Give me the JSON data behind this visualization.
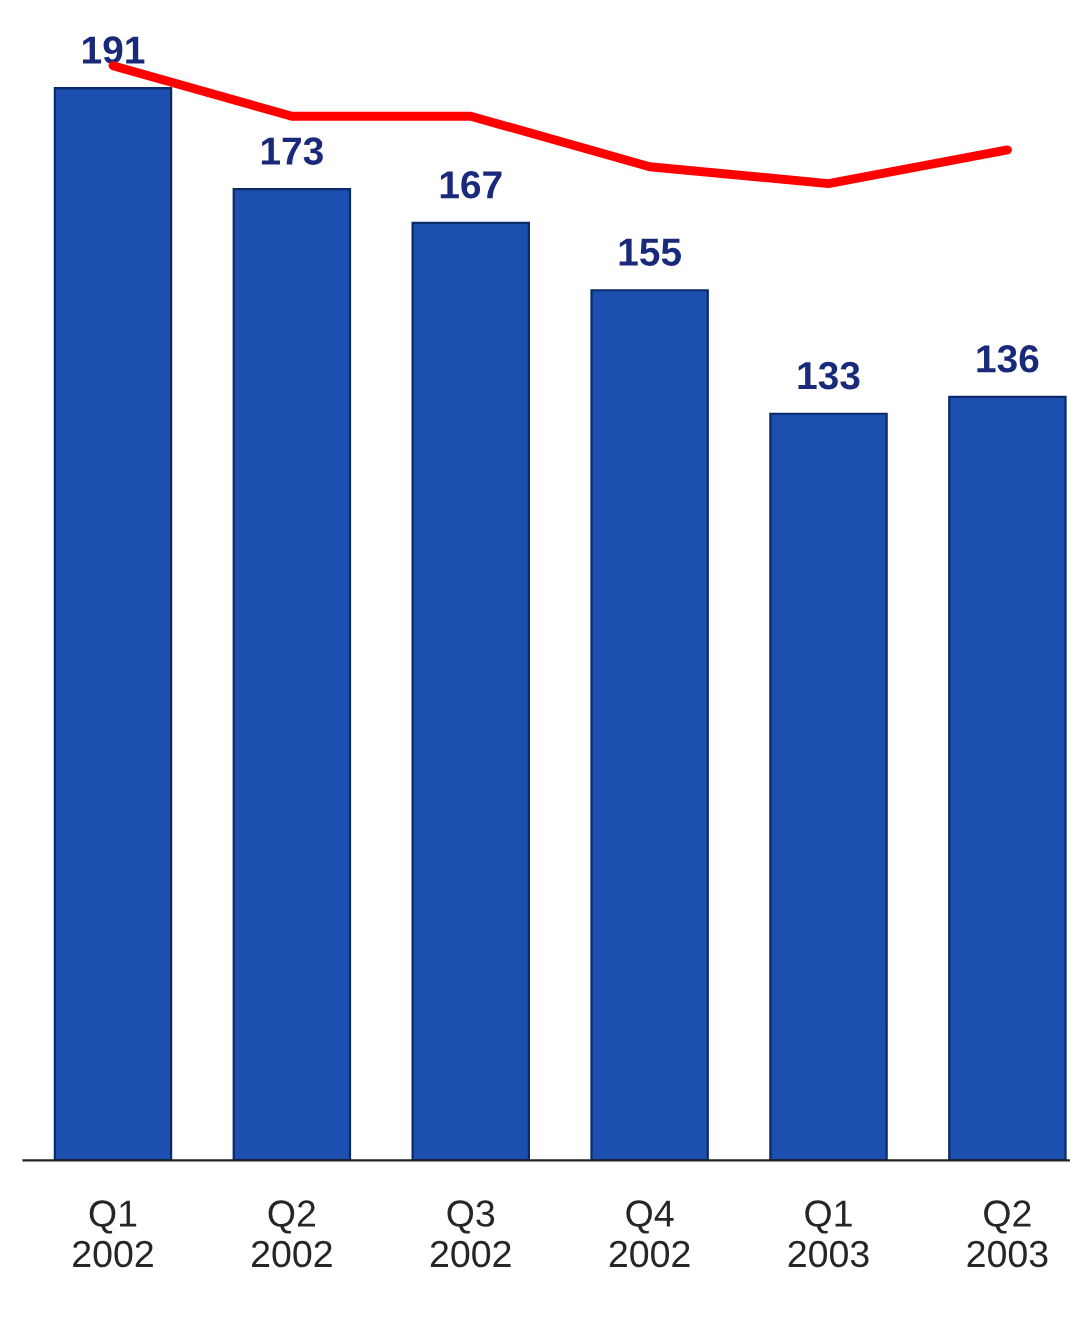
{
  "chart_data": {
    "type": "bar",
    "categories": [
      "Q1\n2002",
      "Q2\n2002",
      "Q3\n2002",
      "Q4\n2002",
      "Q1\n2003",
      "Q2\n2003"
    ],
    "series": [
      {
        "color": "#1c4fb0",
        "values": [
          191,
          173,
          167,
          155,
          133,
          136
        ],
        "value_labels": [
          "191",
          "173",
          "167",
          "155",
          "133",
          "136"
        ]
      },
      {
        "type": "line",
        "color": "#ff0000",
        "values": [
          195,
          186,
          186,
          177,
          174,
          180
        ]
      }
    ],
    "tick_labels": "x",
    "marker": "none",
    "line_style": "solid"
  }
}
